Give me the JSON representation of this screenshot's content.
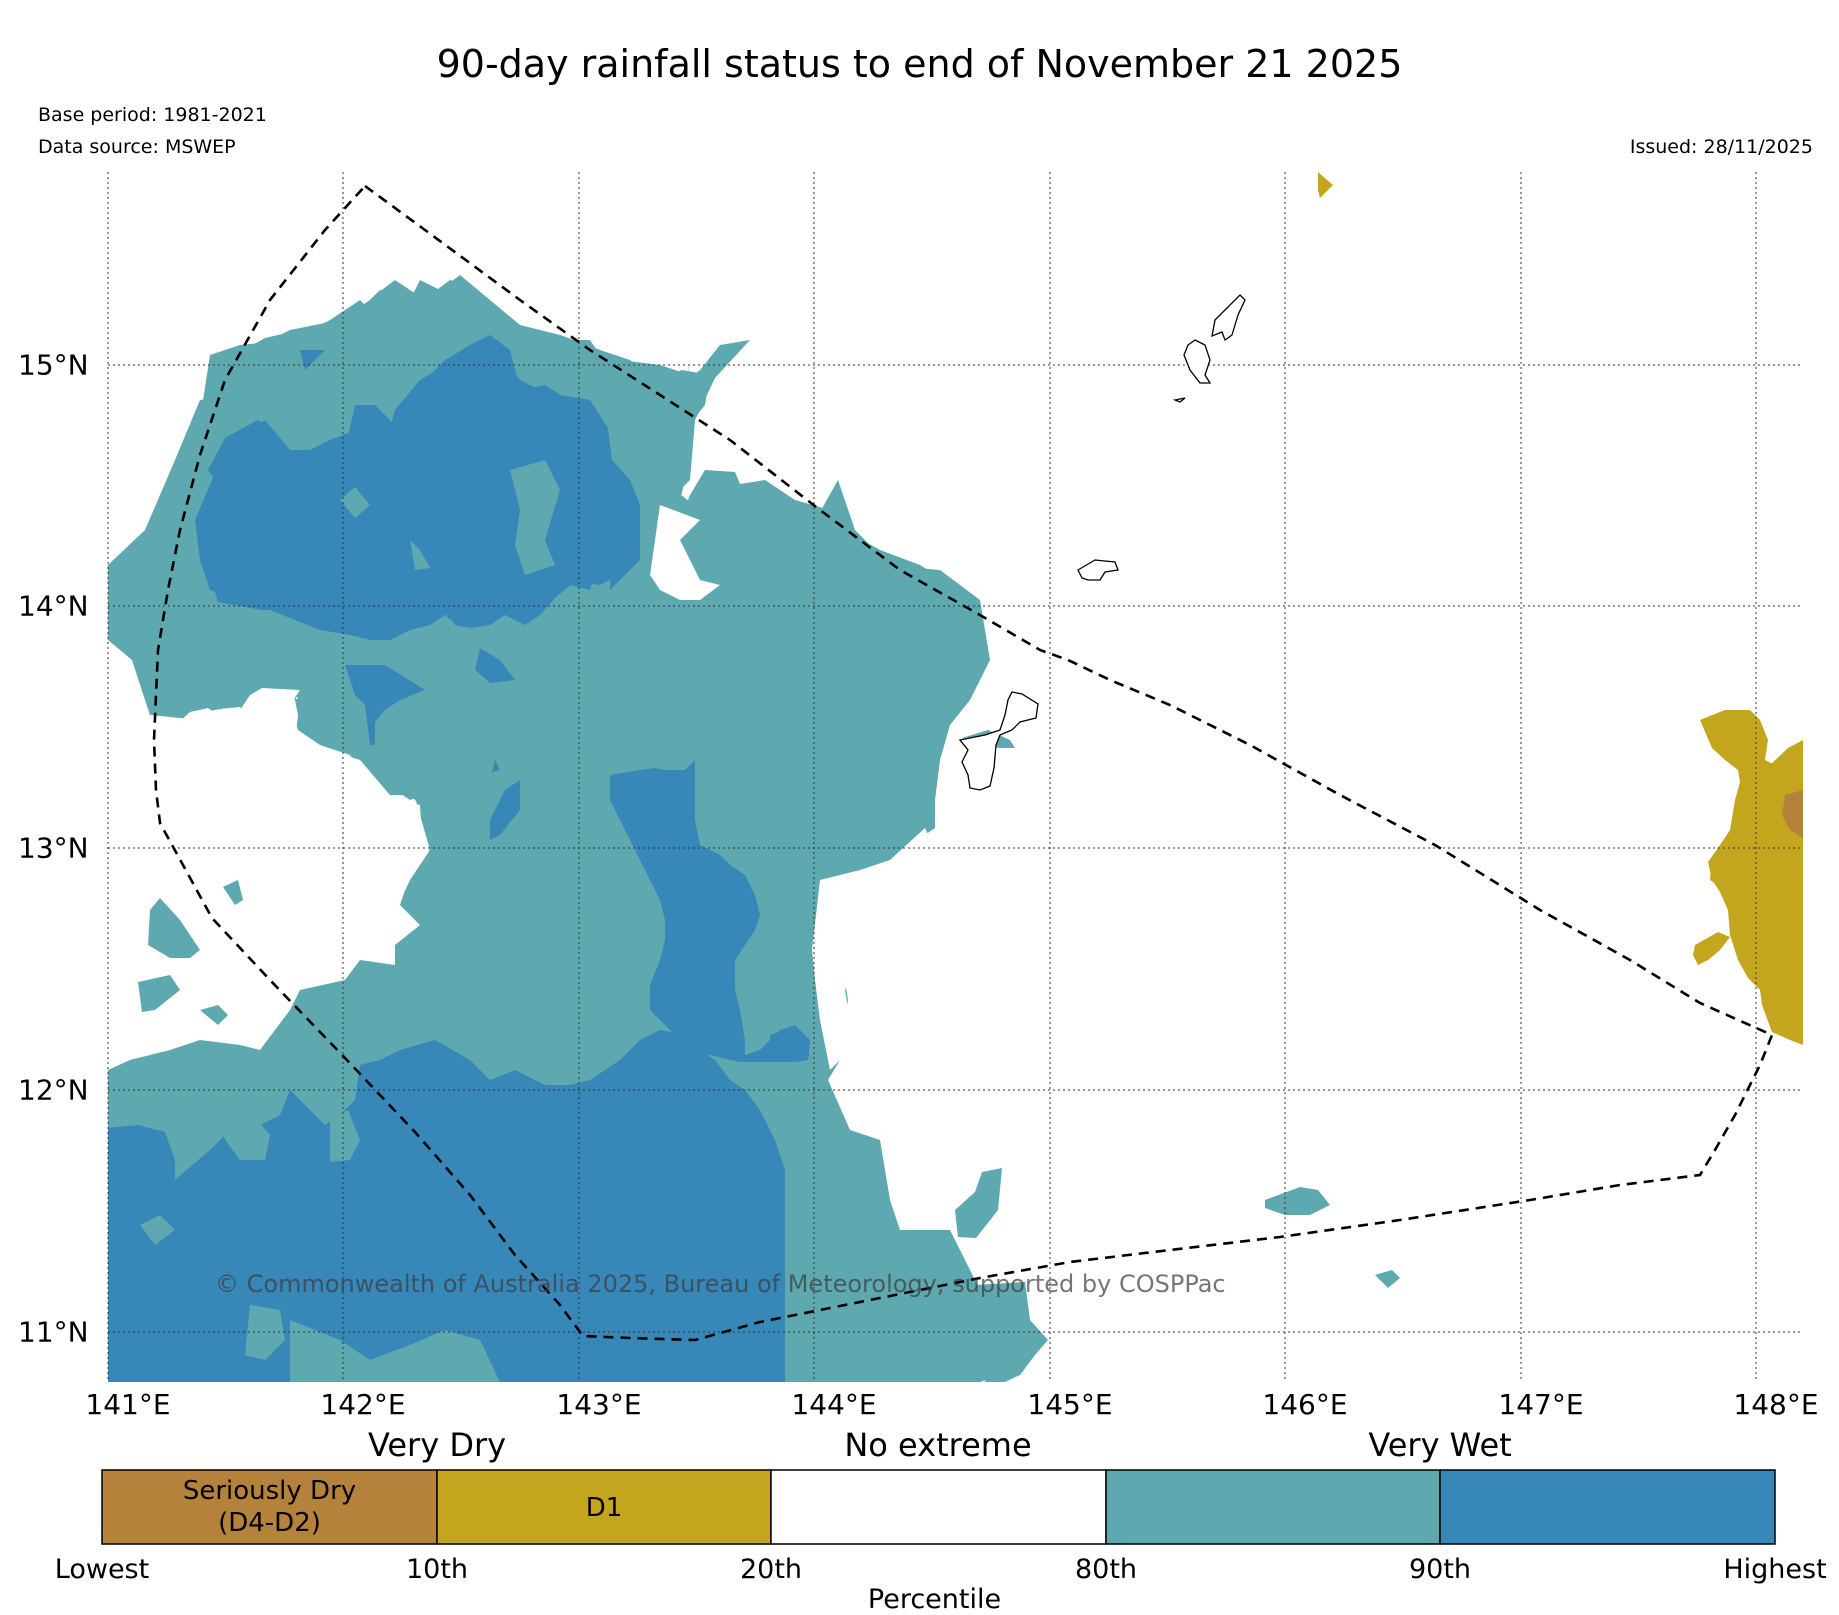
{
  "title": "90-day rainfall status to end of November 21 2025",
  "meta": {
    "base_period": "Base period: 1981-2021",
    "data_source": "Data source: MSWEP",
    "issued": "Issued: 28/11/2025"
  },
  "copyright": "© Commonwealth of Australia 2025, Bureau of Meteorology, supported by COSPPac",
  "axes": {
    "longitudes": [
      "141°E",
      "142°E",
      "143°E",
      "144°E",
      "145°E",
      "146°E",
      "147°E",
      "148°E"
    ],
    "latitudes": [
      "15°N",
      "14°N",
      "13°N",
      "12°N",
      "11°N"
    ],
    "lon_range": [
      141.0,
      148.2
    ],
    "lat_range": [
      10.8,
      15.8
    ],
    "grid": "dotted"
  },
  "legend": {
    "groups": [
      "Very Dry",
      "No extreme",
      "Very Wet"
    ],
    "categories": [
      {
        "label": "Seriously Dry\n(D4-D2)",
        "color": "#b5823c"
      },
      {
        "label": "D1",
        "color": "#c4a51e"
      },
      {
        "label": "",
        "color": "#ffffff"
      },
      {
        "label": "",
        "color": "#5da9af"
      },
      {
        "label": "",
        "color": "#3787b9"
      }
    ],
    "ticks": [
      "Lowest",
      "10th",
      "20th",
      "80th",
      "90th",
      "Highest"
    ],
    "xlabel": "Percentile"
  },
  "colors": {
    "wet_80": "#5da9af",
    "wet_90": "#3787b9",
    "dry_d1": "#c4a51e",
    "dry_d2": "#b5823c"
  }
}
